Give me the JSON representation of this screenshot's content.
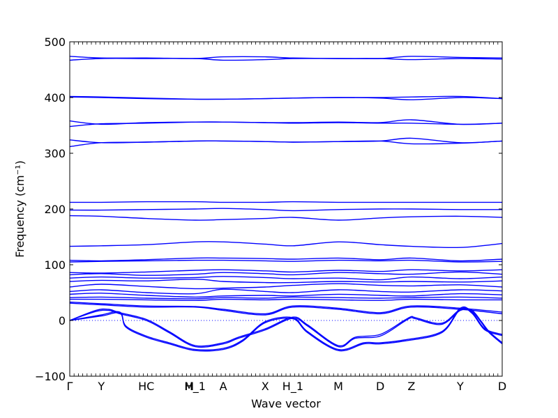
{
  "chart_data": {
    "type": "line",
    "title": "",
    "xlabel": "Wave vector",
    "ylabel": "Frequency (cm⁻¹)",
    "ylim": [
      -100,
      500
    ],
    "yticks": [
      -100,
      0,
      100,
      200,
      300,
      400,
      500
    ],
    "grid": false,
    "zero_line": 0,
    "line_color": "#0000ff",
    "xlim": [
      0,
      1
    ],
    "high_symmetry_points": [
      {
        "label": "Γ",
        "x": 0.0
      },
      {
        "label": "Y",
        "x": 0.073
      },
      {
        "label": "HC",
        "x": 0.177
      },
      {
        "label": "M",
        "x": 0.276
      },
      {
        "label": "H_1",
        "x": 0.29
      },
      {
        "label": "A",
        "x": 0.355
      },
      {
        "label": "X",
        "x": 0.452
      },
      {
        "label": "H_1",
        "x": 0.516
      },
      {
        "label": "M",
        "x": 0.621
      },
      {
        "label": "D",
        "x": 0.718
      },
      {
        "label": "Z",
        "x": 0.79
      },
      {
        "label": "Y",
        "x": 0.903
      },
      {
        "label": "D",
        "x": 1.0
      }
    ],
    "series": [
      {
        "x": [
          0,
          0.073,
          0.177,
          0.29,
          0.355,
          0.452,
          0.516,
          0.621,
          0.718,
          0.79,
          0.903,
          1.0
        ],
        "values": [
          474,
          471,
          471,
          470,
          473,
          473,
          471,
          470,
          470,
          474,
          472,
          471
        ]
      },
      {
        "x": [
          0,
          0.073,
          0.177,
          0.29,
          0.355,
          0.452,
          0.516,
          0.621,
          0.718,
          0.79,
          0.903,
          1.0
        ],
        "values": [
          467,
          470,
          470,
          470,
          467,
          468,
          470,
          470,
          470,
          468,
          470,
          469
        ]
      },
      {
        "x": [
          0,
          0.073,
          0.177,
          0.29,
          0.355,
          0.452,
          0.516,
          0.621,
          0.718,
          0.79,
          0.903,
          1.0
        ],
        "values": [
          402,
          401,
          399,
          397,
          397,
          398,
          399,
          400,
          400,
          401,
          402,
          398
        ]
      },
      {
        "x": [
          0,
          0.073,
          0.177,
          0.29,
          0.355,
          0.452,
          0.516,
          0.621,
          0.718,
          0.79,
          0.903,
          1.0
        ],
        "values": [
          401,
          400,
          398,
          397,
          397,
          398,
          399,
          400,
          399,
          396,
          400,
          398
        ]
      },
      {
        "x": [
          0,
          0.073,
          0.177,
          0.29,
          0.355,
          0.452,
          0.516,
          0.621,
          0.718,
          0.79,
          0.903,
          1.0
        ],
        "values": [
          358,
          352,
          355,
          356,
          356,
          355,
          355,
          356,
          355,
          360,
          352,
          354
        ]
      },
      {
        "x": [
          0,
          0.073,
          0.177,
          0.29,
          0.355,
          0.452,
          0.516,
          0.621,
          0.718,
          0.79,
          0.903,
          1.0
        ],
        "values": [
          348,
          353,
          354,
          356,
          356,
          355,
          354,
          355,
          354,
          354,
          352,
          354
        ]
      },
      {
        "x": [
          0,
          0.073,
          0.177,
          0.29,
          0.355,
          0.452,
          0.516,
          0.621,
          0.718,
          0.79,
          0.903,
          1.0
        ],
        "values": [
          324,
          319,
          320,
          322,
          322,
          321,
          320,
          321,
          322,
          327,
          319,
          322
        ]
      },
      {
        "x": [
          0,
          0.073,
          0.177,
          0.29,
          0.355,
          0.452,
          0.516,
          0.621,
          0.718,
          0.79,
          0.903,
          1.0
        ],
        "values": [
          312,
          319,
          320,
          322,
          322,
          321,
          320,
          321,
          322,
          317,
          318,
          322
        ]
      },
      {
        "x": [
          0,
          0.073,
          0.177,
          0.29,
          0.355,
          0.452,
          0.516,
          0.621,
          0.718,
          0.79,
          0.903,
          1.0
        ],
        "values": [
          212,
          212,
          213,
          213,
          212,
          212,
          213,
          212,
          212,
          212,
          212,
          212
        ]
      },
      {
        "x": [
          0,
          0.073,
          0.177,
          0.29,
          0.355,
          0.452,
          0.516,
          0.621,
          0.718,
          0.79,
          0.903,
          1.0
        ],
        "values": [
          198,
          198,
          199,
          200,
          201,
          199,
          197,
          199,
          200,
          200,
          199,
          199
        ]
      },
      {
        "x": [
          0,
          0.073,
          0.177,
          0.29,
          0.355,
          0.452,
          0.516,
          0.621,
          0.718,
          0.79,
          0.903,
          1.0
        ],
        "values": [
          188,
          187,
          183,
          180,
          181,
          183,
          185,
          180,
          184,
          186,
          187,
          185
        ]
      },
      {
        "x": [
          0,
          0.073,
          0.177,
          0.29,
          0.355,
          0.452,
          0.516,
          0.621,
          0.718,
          0.79,
          0.903,
          1.0
        ],
        "values": [
          133,
          134,
          136,
          141,
          141,
          137,
          134,
          141,
          136,
          133,
          131,
          138
        ]
      },
      {
        "x": [
          0,
          0.073,
          0.177,
          0.29,
          0.355,
          0.452,
          0.516,
          0.621,
          0.718,
          0.79,
          0.903,
          1.0
        ],
        "values": [
          108,
          107,
          109,
          112,
          112,
          111,
          110,
          112,
          109,
          112,
          107,
          110
        ]
      },
      {
        "x": [
          0,
          0.073,
          0.177,
          0.29,
          0.355,
          0.452,
          0.516,
          0.621,
          0.718,
          0.79,
          0.903,
          1.0
        ],
        "values": [
          105,
          106,
          107,
          108,
          108,
          107,
          106,
          108,
          107,
          108,
          105,
          106
        ]
      },
      {
        "x": [
          0,
          0.073,
          0.177,
          0.29,
          0.355,
          0.452,
          0.516,
          0.621,
          0.718,
          0.79,
          0.903,
          1.0
        ],
        "values": [
          86,
          85,
          87,
          90,
          91,
          89,
          87,
          90,
          88,
          91,
          89,
          91
        ]
      },
      {
        "x": [
          0,
          0.073,
          0.177,
          0.29,
          0.355,
          0.452,
          0.516,
          0.621,
          0.718,
          0.79,
          0.903,
          1.0
        ],
        "values": [
          82,
          84,
          81,
          83,
          86,
          84,
          82,
          86,
          84,
          83,
          87,
          83
        ]
      },
      {
        "x": [
          0,
          0.073,
          0.177,
          0.29,
          0.355,
          0.452,
          0.516,
          0.621,
          0.718,
          0.79,
          0.903,
          1.0
        ],
        "values": [
          76,
          78,
          76,
          77,
          79,
          77,
          75,
          76,
          73,
          78,
          75,
          78
        ]
      },
      {
        "x": [
          0,
          0.073,
          0.177,
          0.29,
          0.355,
          0.452,
          0.516,
          0.621,
          0.718,
          0.79,
          0.903,
          1.0
        ],
        "values": [
          70,
          72,
          71,
          74,
          70,
          68,
          68,
          70,
          69,
          70,
          69,
          71
        ]
      },
      {
        "x": [
          0,
          0.073,
          0.177,
          0.29,
          0.355,
          0.452,
          0.516,
          0.621,
          0.718,
          0.79,
          0.903,
          1.0
        ],
        "values": [
          60,
          65,
          61,
          57,
          58,
          60,
          63,
          66,
          63,
          62,
          64,
          60
        ]
      },
      {
        "x": [
          0,
          0.073,
          0.177,
          0.29,
          0.355,
          0.452,
          0.516,
          0.621,
          0.718,
          0.79,
          0.903,
          1.0
        ],
        "values": [
          52,
          55,
          50,
          48,
          56,
          52,
          50,
          55,
          52,
          51,
          55,
          53
        ]
      },
      {
        "x": [
          0,
          0.073,
          0.177,
          0.29,
          0.355,
          0.452,
          0.516,
          0.621,
          0.718,
          0.79,
          0.903,
          1.0
        ],
        "values": [
          47,
          49,
          45,
          42,
          44,
          45,
          44,
          47,
          45,
          44,
          48,
          46
        ]
      },
      {
        "x": [
          0,
          0.073,
          0.177,
          0.29,
          0.355,
          0.452,
          0.516,
          0.621,
          0.718,
          0.79,
          0.903,
          1.0
        ],
        "values": [
          41,
          42,
          40,
          39,
          41,
          40,
          42,
          41,
          40,
          41,
          42,
          40
        ]
      },
      {
        "x": [
          0,
          0.073,
          0.177,
          0.29,
          0.355,
          0.452,
          0.516,
          0.621,
          0.718,
          0.79,
          0.903,
          1.0
        ],
        "values": [
          38,
          38,
          37,
          36,
          38,
          37,
          38,
          37,
          36,
          38,
          37,
          37
        ]
      },
      {
        "x": [
          0,
          0.073,
          0.177,
          0.29,
          0.355,
          0.452,
          0.516,
          0.621,
          0.718,
          0.79,
          0.903,
          1.0
        ],
        "values": [
          33,
          30,
          26,
          25,
          20,
          12,
          26,
          22,
          14,
          26,
          22,
          15
        ]
      },
      {
        "x": [
          0,
          0.073,
          0.177,
          0.29,
          0.355,
          0.452,
          0.516,
          0.621,
          0.718,
          0.79,
          0.903,
          1.0
        ],
        "values": [
          31,
          28,
          24,
          24,
          18,
          10,
          24,
          20,
          12,
          24,
          20,
          12
        ]
      },
      {
        "x": [
          0,
          0.06,
          0.09,
          0.116,
          0.177,
          0.23,
          0.29,
          0.355,
          0.39,
          0.452,
          0.516,
          0.55,
          0.621,
          0.66,
          0.718,
          0.773,
          0.79,
          0.8,
          0.86,
          0.903,
          0.93,
          0.95,
          0.97,
          1.0
        ],
        "values": [
          0,
          18,
          20,
          14,
          2,
          -20,
          -45,
          -40,
          -30,
          -15,
          6,
          -8,
          -45,
          -30,
          -25,
          0,
          7,
          5,
          -5,
          20,
          18,
          0,
          -20,
          -40
        ]
      },
      {
        "x": [
          0,
          0.06,
          0.09,
          0.116,
          0.177,
          0.23,
          0.29,
          0.355,
          0.39,
          0.452,
          0.516,
          0.55,
          0.621,
          0.66,
          0.718,
          0.773,
          0.79,
          0.8,
          0.86,
          0.903,
          0.93,
          0.95,
          0.97,
          1.0
        ],
        "values": [
          0,
          16,
          18,
          12,
          0,
          -22,
          -47,
          -42,
          -32,
          -17,
          4,
          -10,
          -47,
          -32,
          -28,
          -2,
          5,
          3,
          -7,
          18,
          16,
          -2,
          -22,
          -42
        ]
      },
      {
        "x": [
          0,
          0.073,
          0.116,
          0.13,
          0.177,
          0.23,
          0.29,
          0.355,
          0.4,
          0.452,
          0.516,
          0.55,
          0.621,
          0.68,
          0.718,
          0.773,
          0.86,
          0.903,
          0.93,
          0.96,
          1.0
        ],
        "values": [
          0,
          10,
          15,
          -10,
          -28,
          -40,
          -52,
          -50,
          -35,
          -2,
          5,
          -20,
          -52,
          -40,
          -40,
          -35,
          -20,
          22,
          15,
          -15,
          -25
        ]
      },
      {
        "x": [
          0,
          0.073,
          0.116,
          0.13,
          0.177,
          0.23,
          0.29,
          0.355,
          0.4,
          0.452,
          0.516,
          0.55,
          0.621,
          0.68,
          0.718,
          0.773,
          0.86,
          0.903,
          0.93,
          0.96,
          1.0
        ],
        "values": [
          0,
          8,
          13,
          -12,
          -30,
          -42,
          -54,
          -52,
          -37,
          -4,
          3,
          -22,
          -54,
          -42,
          -42,
          -37,
          -22,
          20,
          13,
          -17,
          -27
        ]
      }
    ]
  }
}
